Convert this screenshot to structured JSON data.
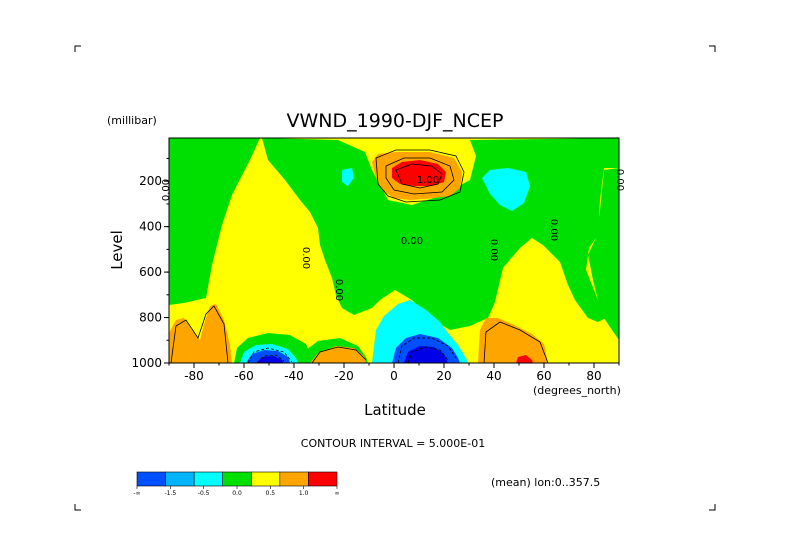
{
  "chart_data": {
    "type": "contour",
    "title": "VWND_1990-DJF_NCEP",
    "xlabel": "Latitude",
    "x_units": "(degrees_north)",
    "ylabel": "Level",
    "y_units": "(millibar)",
    "xlim": [
      -90,
      90
    ],
    "ylim": [
      1000,
      10
    ],
    "x_ticks": [
      "-80",
      "-60",
      "-40",
      "-20",
      "0",
      "20",
      "40",
      "60",
      "80"
    ],
    "x_tick_values": [
      -80,
      -60,
      -40,
      -20,
      0,
      20,
      40,
      60,
      80
    ],
    "y_ticks": [
      "200",
      "400",
      "600",
      "800",
      "1000"
    ],
    "y_tick_values": [
      200,
      400,
      600,
      800,
      1000
    ],
    "contour_interval_text": "CONTOUR INTERVAL = 5.000E-01",
    "subtitle": "(mean) lon:0..357.5",
    "contour_labels": [
      "0.00",
      "0.00",
      "0.00",
      "0.00",
      "0.00",
      "0.00",
      "0.00",
      "1.00"
    ],
    "colorbar": {
      "labels": [
        "-∞",
        "-1.5",
        "-0.5",
        "0.0",
        "0.5",
        "1.0",
        "∞"
      ],
      "colors": [
        "#0050ff",
        "#00b4ff",
        "#00ffff",
        "#00e000",
        "#ffff00",
        "#ffa500",
        "#ff0000"
      ]
    },
    "palette": {
      "deep_blue": "#0000e6",
      "blue": "#0050ff",
      "cyan": "#00ffff",
      "green": "#00e000",
      "yellow": "#ffff00",
      "orange": "#ffa500",
      "red": "#ff0000"
    }
  }
}
